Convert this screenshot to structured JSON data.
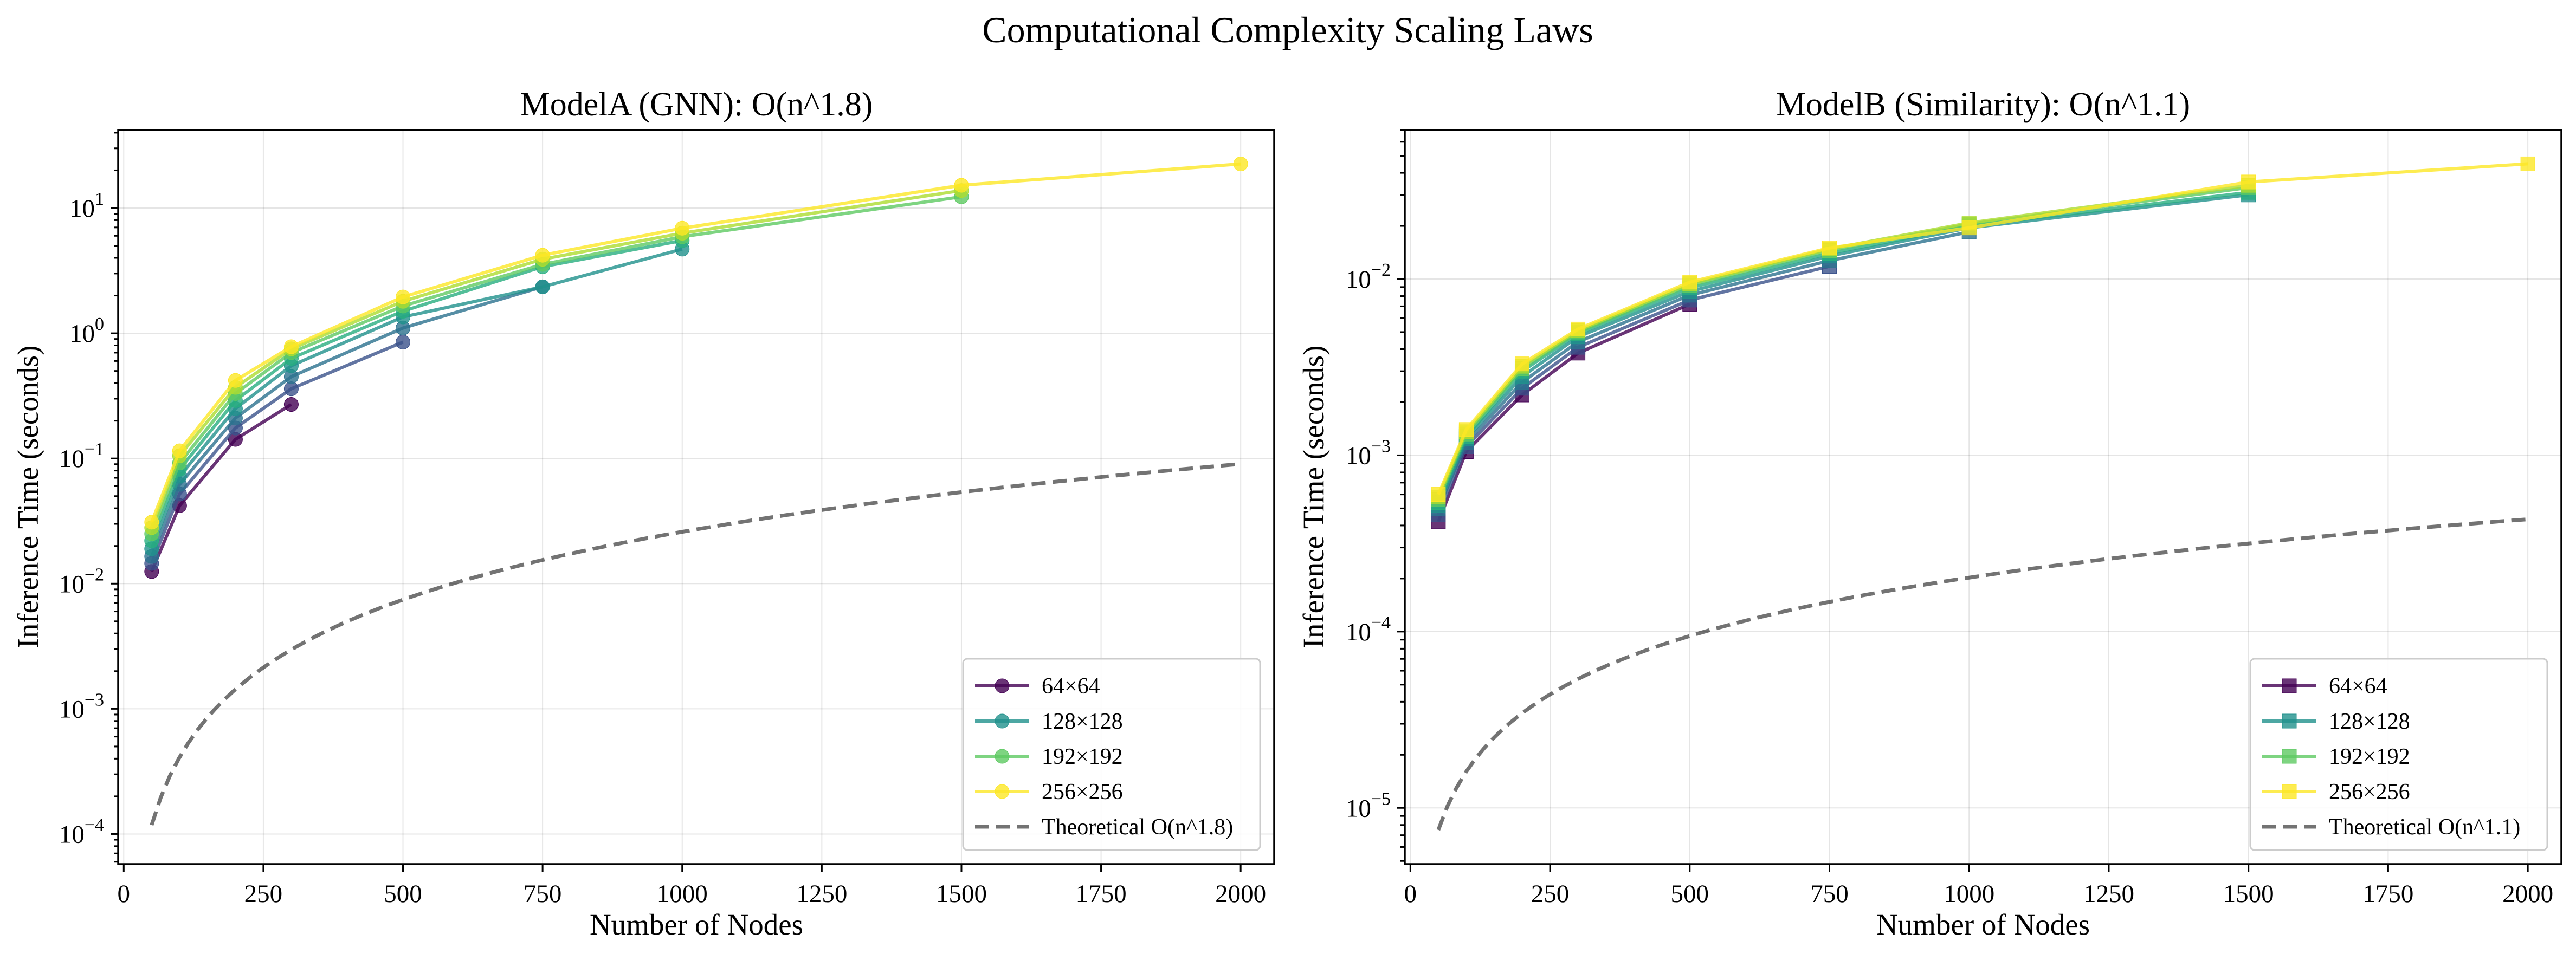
{
  "suptitle": "Computational Complexity Scaling Laws",
  "chart_data": [
    {
      "type": "line",
      "title": "ModelA (GNN): O(n^1.8)",
      "xlabel": "Number of Nodes",
      "ylabel": "Inference Time (seconds)",
      "xlim": [
        -10,
        2060
      ],
      "xticks": [
        0,
        250,
        500,
        750,
        1000,
        1250,
        1500,
        1750,
        2000
      ],
      "yscale": "log",
      "ylim": [
        5.75e-05,
        42
      ],
      "yticks": [
        {
          "value": 0.0001,
          "base": "10",
          "exp": "−4"
        },
        {
          "value": 0.001,
          "base": "10",
          "exp": "−3"
        },
        {
          "value": 0.01,
          "base": "10",
          "exp": "−2"
        },
        {
          "value": 0.1,
          "base": "10",
          "exp": "−1"
        },
        {
          "value": 1,
          "base": "10",
          "exp": "0"
        },
        {
          "value": 10,
          "base": "10",
          "exp": "1"
        }
      ],
      "grid": true,
      "legend_position": "lower right",
      "marker": "circle",
      "series": [
        {
          "name": "64×64",
          "color": "#440154",
          "x": [
            50,
            100,
            200,
            300
          ],
          "y": [
            0.0125,
            0.042,
            0.142,
            0.27
          ]
        },
        {
          "color": "#3b528b",
          "x": [
            50,
            100,
            200,
            300,
            500
          ],
          "y": [
            0.0145,
            0.052,
            0.175,
            0.36,
            0.85
          ]
        },
        {
          "color": "#2c728e",
          "x": [
            50,
            100,
            200,
            300,
            500,
            750
          ],
          "y": [
            0.0165,
            0.062,
            0.21,
            0.45,
            1.1,
            2.35
          ]
        },
        {
          "name": "128×128",
          "color": "#21918c",
          "x": [
            50,
            100,
            200,
            300,
            500,
            750,
            1000
          ],
          "y": [
            0.019,
            0.072,
            0.25,
            0.55,
            1.35,
            2.35,
            4.7
          ]
        },
        {
          "color": "#28ae80",
          "x": [
            50,
            100,
            200,
            300,
            500,
            750,
            1000
          ],
          "y": [
            0.022,
            0.082,
            0.29,
            0.63,
            1.5,
            3.4,
            5.5
          ]
        },
        {
          "name": "192×192",
          "color": "#5ec962",
          "x": [
            50,
            100,
            200,
            300,
            500,
            750,
            1000,
            1500
          ],
          "y": [
            0.025,
            0.092,
            0.33,
            0.7,
            1.65,
            3.55,
            5.9,
            12.3
          ]
        },
        {
          "color": "#addc30",
          "x": [
            50,
            100,
            200,
            300,
            500,
            750,
            1000,
            1500
          ],
          "y": [
            0.028,
            0.105,
            0.37,
            0.75,
            1.8,
            3.9,
            6.3,
            13.8
          ]
        },
        {
          "name": "256×256",
          "color": "#fde725",
          "x": [
            50,
            100,
            200,
            300,
            500,
            750,
            1000,
            1500,
            2000
          ],
          "y": [
            0.031,
            0.115,
            0.42,
            0.78,
            1.95,
            4.2,
            6.9,
            15.2,
            22.5
          ]
        }
      ],
      "theory": {
        "name": "Theoretical O(n^1.8)",
        "color": "#000000",
        "exponent": 1.8,
        "x_range": [
          50,
          2000
        ],
        "y_at_start": 0.000118
      }
    },
    {
      "type": "line",
      "title": "ModelB (Similarity): O(n^1.1)",
      "xlabel": "Number of Nodes",
      "ylabel": "Inference Time (seconds)",
      "xlim": [
        -10,
        2060
      ],
      "xticks": [
        0,
        250,
        500,
        750,
        1000,
        1250,
        1500,
        1750,
        2000
      ],
      "yscale": "log",
      "ylim": [
        4.8e-06,
        0.07
      ],
      "yticks": [
        {
          "value": 1e-05,
          "base": "10",
          "exp": "−5"
        },
        {
          "value": 0.0001,
          "base": "10",
          "exp": "−4"
        },
        {
          "value": 0.001,
          "base": "10",
          "exp": "−3"
        },
        {
          "value": 0.01,
          "base": "10",
          "exp": "−2"
        }
      ],
      "grid": true,
      "legend_position": "lower right",
      "marker": "square",
      "series": [
        {
          "name": "64×64",
          "color": "#440154",
          "x": [
            50,
            100,
            200,
            300,
            500
          ],
          "y": [
            0.00042,
            0.00105,
            0.0022,
            0.0038,
            0.0072
          ]
        },
        {
          "color": "#3b528b",
          "x": [
            50,
            100,
            200,
            300,
            500,
            750
          ],
          "y": [
            0.00046,
            0.00112,
            0.0024,
            0.0041,
            0.0076,
            0.0118
          ]
        },
        {
          "color": "#2c728e",
          "x": [
            50,
            100,
            200,
            300,
            500,
            750,
            1000
          ],
          "y": [
            0.0005,
            0.00118,
            0.0026,
            0.0044,
            0.0081,
            0.0127,
            0.0185
          ]
        },
        {
          "name": "128×128",
          "color": "#21918c",
          "x": [
            50,
            100,
            200,
            300,
            500,
            750,
            1000,
            1500
          ],
          "y": [
            0.00052,
            0.00124,
            0.0028,
            0.0047,
            0.0085,
            0.0135,
            0.0195,
            0.03
          ]
        },
        {
          "color": "#28ae80",
          "x": [
            50,
            100,
            200,
            300,
            500,
            750,
            1000,
            1500
          ],
          "y": [
            0.00054,
            0.00128,
            0.003,
            0.0049,
            0.0089,
            0.014,
            0.02,
            0.031
          ]
        },
        {
          "name": "192×192",
          "color": "#5ec962",
          "x": [
            50,
            100,
            200,
            300,
            500,
            750,
            1000,
            1500
          ],
          "y": [
            0.00056,
            0.00132,
            0.0031,
            0.005,
            0.0092,
            0.0145,
            0.0205,
            0.033
          ]
        },
        {
          "color": "#addc30",
          "x": [
            50,
            100,
            200,
            300,
            500,
            750,
            1000,
            1500
          ],
          "y": [
            0.00058,
            0.00136,
            0.0032,
            0.0051,
            0.0094,
            0.0148,
            0.0208,
            0.034
          ]
        },
        {
          "name": "256×256",
          "color": "#fde725",
          "x": [
            50,
            100,
            200,
            300,
            500,
            750,
            1000,
            1500,
            2000
          ],
          "y": [
            0.0006,
            0.0014,
            0.0033,
            0.0052,
            0.0096,
            0.015,
            0.0195,
            0.0355,
            0.045
          ]
        }
      ],
      "theory": {
        "name": "Theoretical O(n^1.1)",
        "color": "#000000",
        "exponent": 1.1,
        "x_range": [
          50,
          2000
        ],
        "y_at_start": 7.5e-06
      }
    }
  ]
}
